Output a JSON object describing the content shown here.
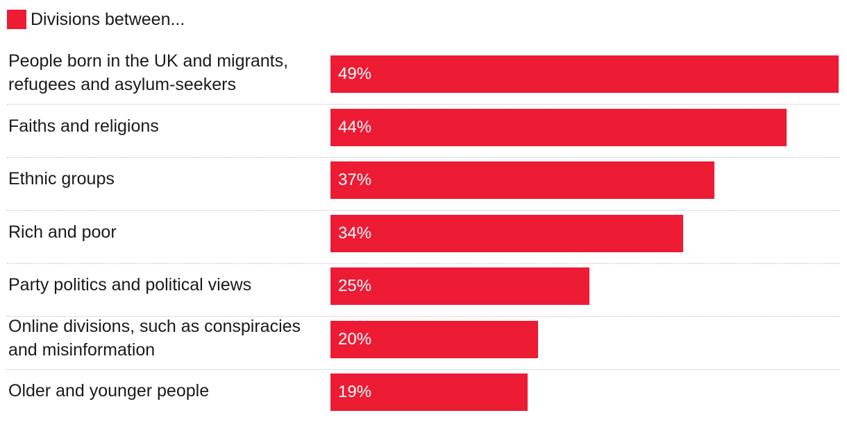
{
  "colors": {
    "bar": "#ed1b34",
    "text": "#1a1a1a",
    "bar_text": "#ffffff",
    "divider": "#bdbdbd"
  },
  "chart_data": {
    "type": "bar",
    "orientation": "horizontal",
    "legend": {
      "label": "Divisions between...",
      "position": "top-left"
    },
    "categories": [
      "People born in the UK and migrants, refugees and asylum-seekers",
      "Faiths and religions",
      "Ethnic groups",
      "Rich and poor",
      "Party politics and political views",
      "Online divisions, such as conspiracies and misinformation",
      "Older and younger people"
    ],
    "category_lines": [
      [
        "People born in the UK and migrants,",
        "refugees and asylum-seekers"
      ],
      [
        "Faiths and religions"
      ],
      [
        "Ethnic groups"
      ],
      [
        "Rich and poor"
      ],
      [
        "Party politics and political views"
      ],
      [
        "Online divisions, such as conspiracies",
        "and misinformation"
      ],
      [
        "Older and younger people"
      ]
    ],
    "values": [
      49,
      44,
      37,
      34,
      25,
      20,
      19
    ],
    "value_labels": [
      "49%",
      "44%",
      "37%",
      "34%",
      "25%",
      "20%",
      "19%"
    ],
    "unit": "%",
    "xlim": [
      0,
      49
    ],
    "grid": false
  }
}
